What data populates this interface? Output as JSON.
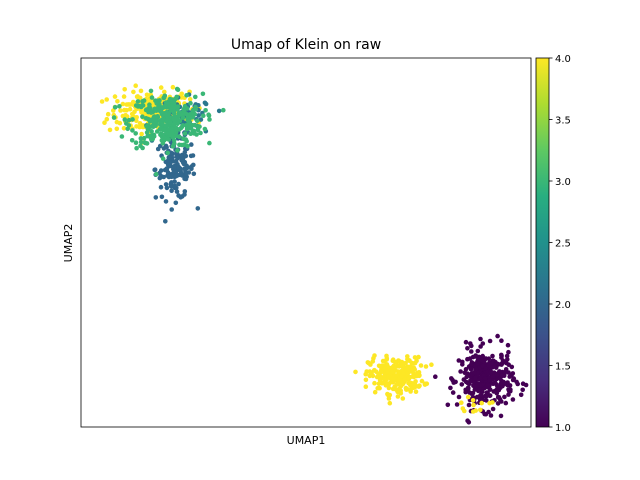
{
  "chart_data": {
    "type": "scatter",
    "title": "Umap of Klein on raw",
    "xlabel": "UMAP1",
    "ylabel": "UMAP2",
    "xlim": [
      0,
      100
    ],
    "ylim": [
      0,
      100
    ],
    "x_ticks_shown": false,
    "y_ticks_shown": false,
    "grid": false,
    "colorbar": {
      "cmap": "viridis",
      "range": [
        1.0,
        4.0
      ],
      "ticks": [
        "1.0",
        "1.5",
        "2.0",
        "2.5",
        "3.0",
        "3.5",
        "4.0"
      ]
    },
    "clusters": [
      {
        "value": 4.0,
        "center": [
          15,
          85
        ],
        "spread": [
          4.5,
          3.0
        ],
        "count": 160
      },
      {
        "value": 4.0,
        "center": [
          18,
          87
        ],
        "spread": [
          3.0,
          2.2
        ],
        "count": 90
      },
      {
        "value": 2.0,
        "center": [
          21,
          70
        ],
        "spread": [
          2.2,
          4.2
        ],
        "count": 150
      },
      {
        "value": 2.2,
        "center": [
          23,
          84
        ],
        "spread": [
          3.2,
          2.5
        ],
        "count": 60
      },
      {
        "value": 3.0,
        "center": [
          19,
          83
        ],
        "spread": [
          4.0,
          3.6
        ],
        "count": 320
      },
      {
        "value": 4.0,
        "center": [
          70,
          14
        ],
        "spread": [
          3.0,
          2.4
        ],
        "count": 260
      },
      {
        "value": 1.0,
        "center": [
          90,
          13
        ],
        "spread": [
          3.0,
          4.0
        ],
        "count": 340
      },
      {
        "value": 4.0,
        "center": [
          87,
          6
        ],
        "spread": [
          2.0,
          0.8
        ],
        "count": 12
      }
    ]
  }
}
